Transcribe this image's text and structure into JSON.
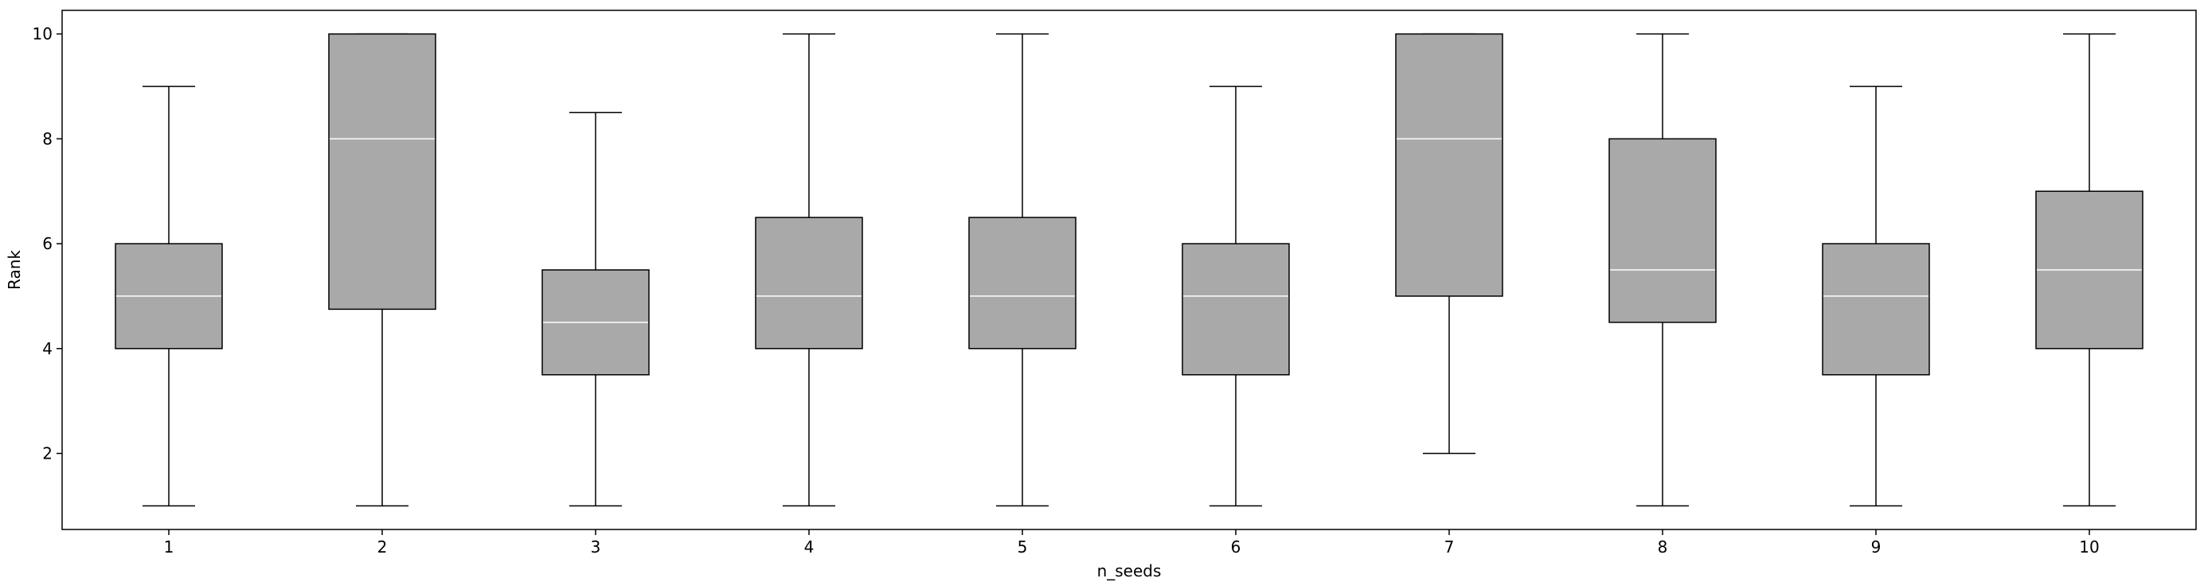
{
  "chart_data": {
    "type": "box",
    "xlabel": "n_seeds",
    "ylabel": "Rank",
    "categories": [
      "1",
      "2",
      "3",
      "4",
      "5",
      "6",
      "7",
      "8",
      "9",
      "10"
    ],
    "boxes": [
      {
        "category": "1",
        "whisker_low": 1,
        "q1": 4,
        "median": 5,
        "q3": 6,
        "whisker_high": 9
      },
      {
        "category": "2",
        "whisker_low": 1,
        "q1": 4.75,
        "median": 8,
        "q3": 10,
        "whisker_high": 10
      },
      {
        "category": "3",
        "whisker_low": 1,
        "q1": 3.5,
        "median": 4.5,
        "q3": 5.5,
        "whisker_high": 8.5
      },
      {
        "category": "4",
        "whisker_low": 1,
        "q1": 4,
        "median": 5,
        "q3": 6.5,
        "whisker_high": 10
      },
      {
        "category": "5",
        "whisker_low": 1,
        "q1": 4,
        "median": 5,
        "q3": 6.5,
        "whisker_high": 10
      },
      {
        "category": "6",
        "whisker_low": 1,
        "q1": 3.5,
        "median": 5,
        "q3": 6,
        "whisker_high": 9
      },
      {
        "category": "7",
        "whisker_low": 2,
        "q1": 5,
        "median": 8,
        "q3": 10,
        "whisker_high": 10
      },
      {
        "category": "8",
        "whisker_low": 1,
        "q1": 4.5,
        "median": 5.5,
        "q3": 8,
        "whisker_high": 10
      },
      {
        "category": "9",
        "whisker_low": 1,
        "q1": 3.5,
        "median": 5,
        "q3": 6,
        "whisker_high": 9
      },
      {
        "category": "10",
        "whisker_low": 1,
        "q1": 4,
        "median": 5.5,
        "q3": 7,
        "whisker_high": 10
      }
    ],
    "yticks": [
      2,
      4,
      6,
      8,
      10
    ],
    "ylim": [
      0.55,
      10.45
    ],
    "grid": false,
    "colors": {
      "box_fill": "#a9a9a9",
      "box_edge": "#000000",
      "median": "#ffffff",
      "whisker": "#000000"
    }
  }
}
